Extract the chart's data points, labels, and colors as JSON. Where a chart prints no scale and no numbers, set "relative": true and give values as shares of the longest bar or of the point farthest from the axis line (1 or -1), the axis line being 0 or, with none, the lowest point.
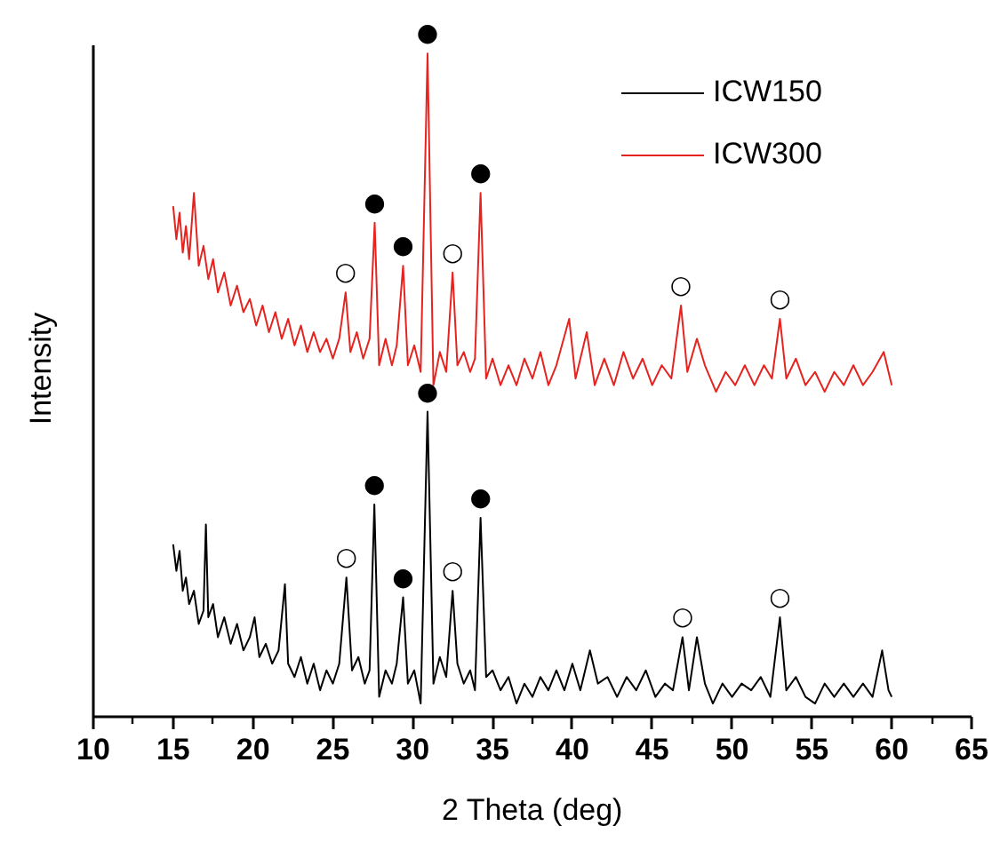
{
  "chart_data": {
    "type": "line",
    "xlabel": "2 Theta (deg)",
    "ylabel": "Intensity",
    "relative": true,
    "xlim": [
      10,
      65
    ],
    "xticks": [
      10,
      15,
      20,
      25,
      30,
      35,
      40,
      45,
      50,
      55,
      60,
      65
    ],
    "legend": "top right",
    "series": [
      {
        "name": "ICW150",
        "color": "#000000",
        "x": [
          15.0,
          15.2,
          15.4,
          15.6,
          15.8,
          16.0,
          16.3,
          16.6,
          16.9,
          17.05,
          17.2,
          17.5,
          17.8,
          18.2,
          18.6,
          19.0,
          19.4,
          19.8,
          20.1,
          20.4,
          20.8,
          21.2,
          21.6,
          22.0,
          22.2,
          22.6,
          23.0,
          23.4,
          23.8,
          24.2,
          24.6,
          25.0,
          25.4,
          25.85,
          26.2,
          26.6,
          27.0,
          27.3,
          27.6,
          27.9,
          28.3,
          28.7,
          29.0,
          29.4,
          29.7,
          30.1,
          30.5,
          30.93,
          31.3,
          31.7,
          32.1,
          32.5,
          32.8,
          33.2,
          33.6,
          33.9,
          34.25,
          34.6,
          35.0,
          35.5,
          36.0,
          36.5,
          37.0,
          37.5,
          38.0,
          38.5,
          39.0,
          39.5,
          40.0,
          40.5,
          41.1,
          41.6,
          42.2,
          42.8,
          43.4,
          44.0,
          44.6,
          45.2,
          45.8,
          46.3,
          46.9,
          47.3,
          47.8,
          48.3,
          48.8,
          49.4,
          50.0,
          50.6,
          51.2,
          51.8,
          52.4,
          53.0,
          53.4,
          54.0,
          54.6,
          55.2,
          55.8,
          56.4,
          57.0,
          57.6,
          58.2,
          58.8,
          59.4,
          59.8,
          60.0
        ],
        "values": [
          0.26,
          0.22,
          0.25,
          0.19,
          0.21,
          0.17,
          0.19,
          0.14,
          0.16,
          0.29,
          0.15,
          0.17,
          0.12,
          0.15,
          0.11,
          0.14,
          0.1,
          0.12,
          0.15,
          0.09,
          0.11,
          0.08,
          0.1,
          0.2,
          0.08,
          0.06,
          0.09,
          0.05,
          0.08,
          0.04,
          0.07,
          0.05,
          0.08,
          0.21,
          0.07,
          0.09,
          0.05,
          0.07,
          0.32,
          0.03,
          0.07,
          0.05,
          0.08,
          0.18,
          0.05,
          0.07,
          0.02,
          0.46,
          0.05,
          0.09,
          0.06,
          0.19,
          0.08,
          0.05,
          0.07,
          0.04,
          0.3,
          0.06,
          0.07,
          0.04,
          0.06,
          0.02,
          0.05,
          0.03,
          0.06,
          0.04,
          0.07,
          0.04,
          0.08,
          0.04,
          0.1,
          0.05,
          0.06,
          0.03,
          0.06,
          0.04,
          0.07,
          0.03,
          0.05,
          0.04,
          0.12,
          0.04,
          0.12,
          0.05,
          0.02,
          0.05,
          0.03,
          0.05,
          0.04,
          0.06,
          0.03,
          0.15,
          0.04,
          0.06,
          0.03,
          0.02,
          0.05,
          0.03,
          0.05,
          0.03,
          0.05,
          0.03,
          0.1,
          0.04,
          0.03
        ]
      },
      {
        "name": "ICW300",
        "color": "#e52420",
        "x": [
          15.0,
          15.2,
          15.4,
          15.6,
          15.8,
          16.0,
          16.3,
          16.6,
          16.9,
          17.2,
          17.5,
          17.8,
          18.2,
          18.6,
          19.0,
          19.4,
          19.8,
          20.2,
          20.6,
          21.0,
          21.4,
          21.8,
          22.2,
          22.6,
          23.0,
          23.4,
          23.8,
          24.2,
          24.6,
          25.0,
          25.4,
          25.8,
          26.1,
          26.5,
          26.9,
          27.3,
          27.62,
          27.9,
          28.3,
          28.7,
          29.0,
          29.4,
          29.7,
          30.1,
          30.5,
          30.93,
          31.3,
          31.7,
          32.1,
          32.5,
          32.8,
          33.2,
          33.6,
          33.9,
          34.25,
          34.6,
          35.0,
          35.5,
          36.0,
          36.5,
          37.0,
          37.5,
          38.0,
          38.5,
          39.0,
          39.8,
          40.2,
          40.9,
          41.4,
          42.0,
          42.6,
          43.2,
          43.8,
          44.4,
          45.0,
          45.6,
          46.2,
          46.8,
          47.2,
          47.8,
          48.3,
          49.0,
          49.6,
          50.2,
          50.8,
          51.4,
          52.0,
          52.5,
          53.0,
          53.4,
          54.0,
          54.6,
          55.2,
          55.8,
          56.4,
          57.0,
          57.6,
          58.2,
          58.8,
          59.5,
          60.0
        ],
        "values": [
          0.77,
          0.72,
          0.76,
          0.7,
          0.74,
          0.69,
          0.79,
          0.68,
          0.71,
          0.66,
          0.69,
          0.64,
          0.67,
          0.62,
          0.65,
          0.61,
          0.63,
          0.59,
          0.62,
          0.58,
          0.61,
          0.57,
          0.6,
          0.56,
          0.59,
          0.55,
          0.58,
          0.55,
          0.57,
          0.54,
          0.57,
          0.64,
          0.55,
          0.58,
          0.54,
          0.57,
          0.745,
          0.53,
          0.57,
          0.53,
          0.56,
          0.68,
          0.53,
          0.56,
          0.52,
          1.0,
          0.5,
          0.55,
          0.52,
          0.67,
          0.53,
          0.55,
          0.52,
          0.54,
          0.79,
          0.51,
          0.54,
          0.5,
          0.53,
          0.5,
          0.54,
          0.51,
          0.55,
          0.5,
          0.53,
          0.6,
          0.51,
          0.58,
          0.5,
          0.54,
          0.5,
          0.55,
          0.51,
          0.54,
          0.5,
          0.53,
          0.51,
          0.62,
          0.52,
          0.57,
          0.53,
          0.49,
          0.52,
          0.5,
          0.53,
          0.5,
          0.53,
          0.51,
          0.6,
          0.51,
          0.54,
          0.5,
          0.52,
          0.49,
          0.52,
          0.5,
          0.53,
          0.5,
          0.52,
          0.55,
          0.5
        ]
      }
    ],
    "annotations": [
      {
        "text": "○",
        "x": 25.85,
        "y": 0.21
      },
      {
        "text": "●",
        "x": 27.6,
        "y": 0.32
      },
      {
        "text": "●",
        "x": 29.4,
        "y": 0.18
      },
      {
        "text": "●",
        "x": 30.93,
        "y": 0.46
      },
      {
        "text": "○",
        "x": 32.5,
        "y": 0.19
      },
      {
        "text": "●",
        "x": 34.25,
        "y": 0.3
      },
      {
        "text": "○",
        "x": 46.9,
        "y": 0.12
      },
      {
        "text": "○",
        "x": 53.0,
        "y": 0.15
      },
      {
        "text": "○",
        "x": 25.8,
        "y": 0.64
      },
      {
        "text": "●",
        "x": 27.62,
        "y": 0.745
      },
      {
        "text": "●",
        "x": 29.4,
        "y": 0.68
      },
      {
        "text": "●",
        "x": 30.93,
        "y": 1.0
      },
      {
        "text": "○",
        "x": 32.5,
        "y": 0.67
      },
      {
        "text": "●",
        "x": 34.25,
        "y": 0.79
      },
      {
        "text": "○",
        "x": 46.8,
        "y": 0.62
      },
      {
        "text": "○",
        "x": 53.0,
        "y": 0.6
      }
    ]
  }
}
